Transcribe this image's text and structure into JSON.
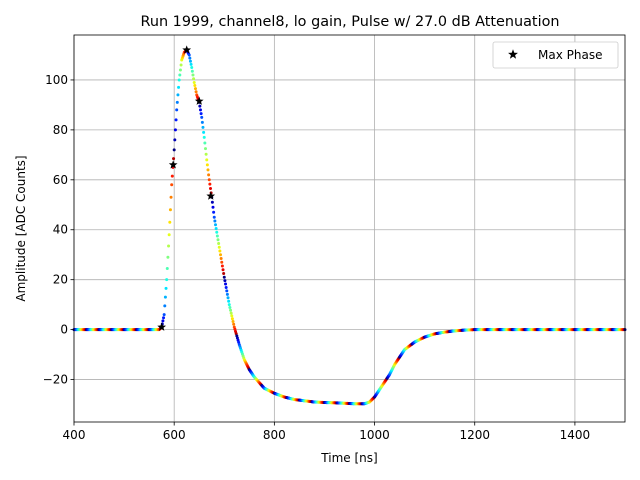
{
  "chart_data": {
    "type": "scatter",
    "title": "Run 1999, channel8, lo gain, Pulse w/ 27.0 dB Attenuation",
    "xlabel": "Time [ns]",
    "ylabel": "Amplitude [ADC Counts]",
    "xlim": [
      400,
      1500
    ],
    "ylim": [
      -37,
      118
    ],
    "xticks": [
      400,
      600,
      800,
      1000,
      1200,
      1400
    ],
    "yticks": [
      -20,
      0,
      20,
      40,
      60,
      80,
      100
    ],
    "grid": true,
    "legend": {
      "position": "top-right",
      "entries": [
        "Max Phase"
      ]
    },
    "colormap": "jet",
    "pulse_curve": {
      "x": [
        400,
        500,
        570,
        575,
        580,
        585,
        590,
        595,
        600,
        605,
        610,
        615,
        620,
        625,
        630,
        635,
        640,
        645,
        650,
        655,
        660,
        665,
        670,
        675,
        680,
        690,
        700,
        710,
        720,
        730,
        740,
        750,
        760,
        780,
        800,
        820,
        840,
        860,
        880,
        900,
        920,
        940,
        960,
        980,
        990,
        1000,
        1010,
        1020,
        1030,
        1040,
        1050,
        1060,
        1070,
        1080,
        1100,
        1120,
        1140,
        1160,
        1180,
        1200,
        1300,
        1400,
        1500
      ],
      "y": [
        0,
        0,
        0,
        1,
        6,
        20,
        38,
        58,
        72,
        88,
        100,
        108,
        111,
        112,
        110,
        105,
        99,
        94,
        91,
        85,
        77,
        68,
        60,
        53,
        45,
        33,
        21,
        10,
        1,
        -6,
        -12,
        -16,
        -19,
        -23.5,
        -25.5,
        -27,
        -28,
        -28.5,
        -29,
        -29.2,
        -29.3,
        -29.5,
        -29.7,
        -29.7,
        -29,
        -27,
        -24,
        -21,
        -18,
        -14,
        -11,
        -8,
        -6.5,
        -5,
        -3,
        -1.7,
        -1,
        -0.5,
        -0.2,
        0,
        0,
        0,
        0
      ]
    },
    "max_phase_points": {
      "x": [
        575,
        598,
        625,
        650,
        673
      ],
      "y": [
        1,
        66,
        112,
        91.5,
        53.5
      ]
    }
  }
}
